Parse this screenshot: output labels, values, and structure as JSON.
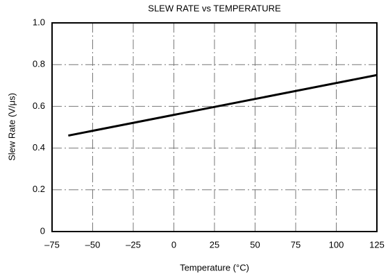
{
  "chart_data": {
    "type": "line",
    "title": "SLEW RATE vs TEMPERATURE",
    "xlabel": "Temperature (°C)",
    "ylabel": "Slew Rate (V/μs)",
    "x": [
      -65,
      125
    ],
    "series": [
      {
        "name": null,
        "color": "#000000",
        "values": [
          0.46,
          0.75
        ]
      }
    ],
    "xlim": [
      -75,
      125
    ],
    "xticks": [
      {
        "value": -75,
        "label": "–75"
      },
      {
        "value": -50,
        "label": "–50"
      },
      {
        "value": -25,
        "label": "–25"
      },
      0,
      25,
      50,
      75,
      100,
      125
    ],
    "ylim": [
      0,
      1
    ],
    "yticks": [
      0,
      0.2,
      0.4,
      0.6,
      0.8,
      {
        "value": 1,
        "label": "1.0"
      }
    ],
    "grid": true
  }
}
